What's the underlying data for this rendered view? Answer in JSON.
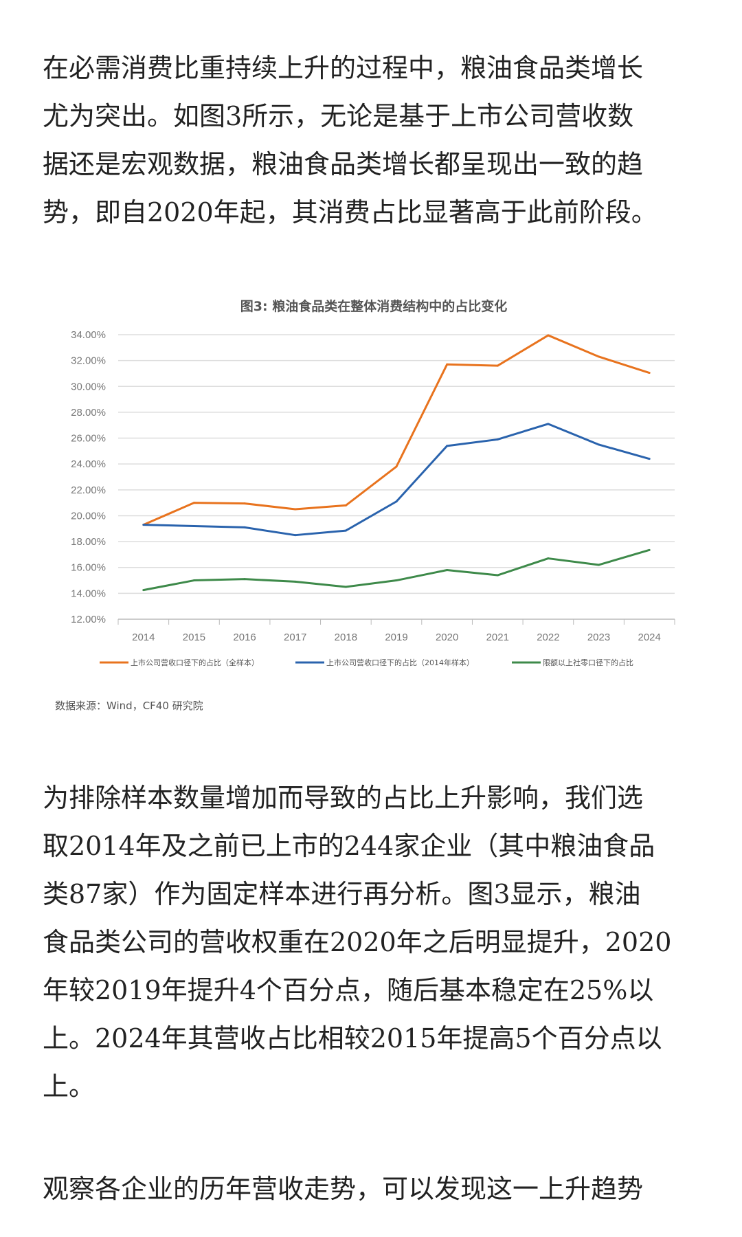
{
  "paragraphs": [
    {
      "lines": [
        "在必需消费比重持续上升的过程中，粮油食品类增长",
        "尤为突出。如图3所示，无论是基于上市公司营收数",
        "据还是宏观数据，粮油食品类增长都呈现出一致的趋",
        "势，即自2020年起，其消费占比显著高于此前阶段。"
      ]
    },
    {
      "lines": [
        "为排除样本数量增加而导致的占比上升影响，我们选",
        "取2014年及之前已上市的244家企业（其中粮油食品",
        "类87家）作为固定样本进行再分析。图3显示，粮油",
        "食品类公司的营收权重在2020年之后明显提升，2020",
        "年较2019年提升4个百分点，随后基本稳定在25%以",
        "上。2024年其营收占比相较2015年提高5个百分点以",
        "上。"
      ]
    },
    {
      "lines": [
        "观察各企业的历年营收走势，可以发现这一上升趋势"
      ]
    }
  ],
  "chart_data": {
    "type": "line",
    "title": "图3: 粮油食品类在整体消费结构中的占比变化",
    "categories": [
      "2014",
      "2015",
      "2016",
      "2017",
      "2018",
      "2019",
      "2020",
      "2021",
      "2022",
      "2023",
      "2024"
    ],
    "yticks": [
      "12.00%",
      "14.00%",
      "16.00%",
      "18.00%",
      "20.00%",
      "22.00%",
      "24.00%",
      "26.00%",
      "28.00%",
      "30.00%",
      "32.00%",
      "34.00%"
    ],
    "ylim": [
      12,
      34
    ],
    "grid": true,
    "legend_position": "bottom",
    "series": [
      {
        "name": "上市公司营收口径下的占比（全样本）",
        "color": "#e8731e",
        "values": [
          19.3,
          21.0,
          20.95,
          20.5,
          20.8,
          23.8,
          31.7,
          31.6,
          33.95,
          32.3,
          31.05
        ]
      },
      {
        "name": "上市公司营收口径下的占比（2014年样本）",
        "color": "#2a63ad",
        "values": [
          19.3,
          19.2,
          19.1,
          18.5,
          18.85,
          21.1,
          25.4,
          25.9,
          27.1,
          25.5,
          24.4
        ]
      },
      {
        "name": "限额以上社零口径下的占比",
        "color": "#3e8a4a",
        "values": [
          14.25,
          15.0,
          15.1,
          14.9,
          14.5,
          15.0,
          15.8,
          15.4,
          16.7,
          16.2,
          17.35
        ]
      }
    ],
    "source": "数据来源：Wind，CF40 研究院"
  }
}
